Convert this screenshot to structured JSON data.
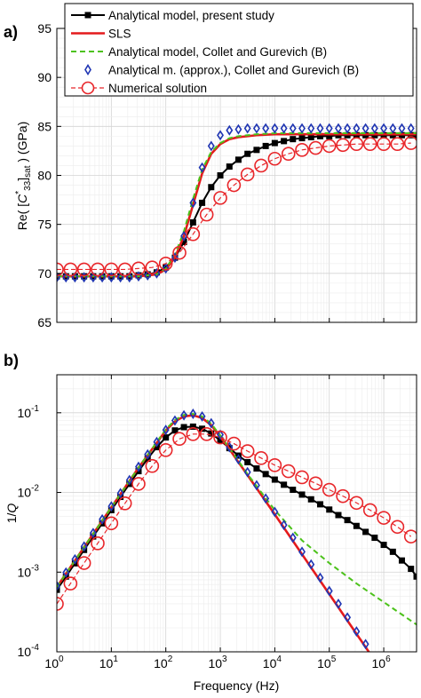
{
  "panels": {
    "a": {
      "label": "a)"
    },
    "b": {
      "label": "b)"
    }
  },
  "colors": {
    "black": "#000000",
    "red": "#e41a1c",
    "green": "#4cc21b",
    "blue": "#1f35b3",
    "red_circle": "#e8262a",
    "grid": "#d9d9d9"
  },
  "chart_data": [
    {
      "panel": "a",
      "type": "line",
      "ylabel": "Re( [C*33]sat ) (GPa)",
      "xscale": "log",
      "xlim": [
        1,
        4000000
      ],
      "ylim": [
        65,
        95
      ],
      "yticks": [
        "65",
        "70",
        "75",
        "80",
        "85",
        "90",
        "95"
      ],
      "grid": true,
      "legend": {
        "placement": "top-left",
        "entries": [
          "Analytical model, present study",
          "SLS",
          "Analytical model, Collet and Gurevich (B)",
          "Analytical m. (approx.), Collet and Gurevich (B)",
          "Numerical solution"
        ]
      },
      "series": [
        {
          "name": "Analytical model, present study",
          "marker": "square",
          "style": "solid",
          "x": [
            1,
            1.47,
            2.15,
            3.16,
            4.64,
            6.81,
            10,
            14.7,
            21.5,
            31.6,
            46.4,
            68.1,
            100,
            147,
            215,
            316,
            464,
            681,
            1000,
            1470,
            2150,
            3160,
            4640,
            6810,
            10000,
            14700,
            21500,
            31600,
            46400,
            68100,
            100000,
            147000,
            215000,
            316000,
            464000,
            681000,
            1000000,
            1470000,
            2150000,
            3160000,
            4000000
          ],
          "y": [
            69.7,
            69.7,
            69.7,
            69.7,
            69.7,
            69.7,
            69.7,
            69.7,
            69.7,
            69.8,
            69.9,
            70.1,
            70.6,
            71.6,
            73.2,
            75.2,
            77.2,
            78.8,
            80.0,
            80.9,
            81.6,
            82.2,
            82.6,
            83.0,
            83.3,
            83.5,
            83.7,
            83.8,
            83.9,
            84.0,
            84.0,
            84.1,
            84.1,
            84.1,
            84.1,
            84.1,
            84.1,
            84.1,
            84.1,
            84.1,
            84.1
          ]
        },
        {
          "name": "SLS",
          "marker": "none",
          "style": "solid",
          "x": [
            1,
            10,
            31.6,
            68.1,
            100,
            147,
            215,
            316,
            464,
            681,
            1000,
            1470,
            2150,
            3160,
            4640,
            10000,
            100000,
            1000000,
            4000000
          ],
          "y": [
            69.7,
            69.7,
            69.7,
            69.9,
            70.4,
            71.6,
            73.8,
            77.0,
            80.2,
            82.2,
            83.2,
            83.7,
            83.9,
            84.0,
            84.1,
            84.2,
            84.2,
            84.2,
            84.2
          ]
        },
        {
          "name": "Analytical model, Collet and Gurevich (B)",
          "marker": "none",
          "style": "dashed",
          "x": [
            1,
            10,
            31.6,
            68.1,
            100,
            147,
            215,
            316,
            464,
            681,
            1000,
            1470,
            2150,
            3160,
            4640,
            10000,
            100000,
            1000000,
            4000000
          ],
          "y": [
            69.7,
            69.7,
            69.7,
            69.9,
            70.5,
            71.9,
            74.3,
            77.6,
            80.6,
            82.4,
            83.3,
            83.8,
            84.0,
            84.1,
            84.2,
            84.3,
            84.3,
            84.3,
            84.3
          ]
        },
        {
          "name": "Analytical m. (approx.), Collet and Gurevich (B)",
          "marker": "diamond",
          "style": "none",
          "x": [
            1,
            1.47,
            2.15,
            3.16,
            4.64,
            6.81,
            10,
            14.7,
            21.5,
            31.6,
            46.4,
            68.1,
            100,
            147,
            215,
            316,
            464,
            681,
            1000,
            1470,
            2150,
            3160,
            4640,
            6810,
            10000,
            14700,
            21500,
            31600,
            46400,
            68100,
            100000,
            147000,
            215000,
            316000,
            464000,
            681000,
            1000000,
            1470000,
            2150000,
            3160000
          ],
          "y": [
            69.6,
            69.6,
            69.6,
            69.6,
            69.6,
            69.6,
            69.6,
            69.6,
            69.6,
            69.7,
            69.8,
            70.0,
            70.5,
            71.6,
            73.8,
            77.2,
            80.8,
            83.0,
            84.1,
            84.6,
            84.7,
            84.8,
            84.8,
            84.8,
            84.8,
            84.8,
            84.8,
            84.8,
            84.8,
            84.8,
            84.8,
            84.8,
            84.8,
            84.8,
            84.8,
            84.8,
            84.8,
            84.8,
            84.8,
            84.8
          ]
        },
        {
          "name": "Numerical solution",
          "marker": "circle",
          "style": "dashed",
          "x": [
            1,
            1.78,
            3.16,
            5.62,
            10,
            17.8,
            31.6,
            56.2,
            100,
            178,
            316,
            562,
            1000,
            1780,
            3160,
            5620,
            10000,
            17800,
            31600,
            56200,
            100000,
            178000,
            316000,
            562000,
            1000000,
            1780000,
            3160000
          ],
          "y": [
            70.4,
            70.4,
            70.4,
            70.4,
            70.4,
            70.4,
            70.5,
            70.6,
            71.0,
            72.1,
            74.0,
            76.0,
            77.7,
            79.0,
            80.1,
            81.0,
            81.7,
            82.2,
            82.6,
            82.8,
            83.0,
            83.1,
            83.2,
            83.2,
            83.2,
            83.2,
            83.3
          ]
        }
      ]
    },
    {
      "panel": "b",
      "type": "line",
      "xlabel": "Frequency (Hz)",
      "ylabel": "1/Q",
      "xscale": "log",
      "yscale": "log",
      "xlim": [
        1,
        4000000
      ],
      "ylim": [
        0.0001,
        0.3
      ],
      "grid": true,
      "series": [
        {
          "name": "Analytical model, present study",
          "marker": "square",
          "style": "solid",
          "x": [
            1,
            1.47,
            2.15,
            3.16,
            4.64,
            6.81,
            10,
            14.7,
            21.5,
            31.6,
            46.4,
            68.1,
            100,
            147,
            215,
            316,
            464,
            681,
            1000,
            1470,
            2150,
            3160,
            4640,
            6810,
            10000,
            14700,
            21500,
            31600,
            46400,
            68100,
            100000,
            147000,
            215000,
            316000,
            464000,
            681000,
            1000000,
            1470000,
            2150000,
            3160000,
            4000000
          ],
          "y": [
            0.0006,
            0.00088,
            0.00129,
            0.0019,
            0.0028,
            0.0041,
            0.006,
            0.0088,
            0.0128,
            0.0185,
            0.0265,
            0.037,
            0.049,
            0.06,
            0.066,
            0.067,
            0.063,
            0.055,
            0.045,
            0.036,
            0.029,
            0.024,
            0.02,
            0.017,
            0.0145,
            0.0125,
            0.0108,
            0.0094,
            0.0082,
            0.0071,
            0.0061,
            0.0052,
            0.0045,
            0.0038,
            0.0032,
            0.0027,
            0.0022,
            0.0018,
            0.0014,
            0.0011,
            0.00088
          ]
        },
        {
          "name": "SLS",
          "marker": "none",
          "style": "solid",
          "x": [
            1,
            10,
            31.6,
            100,
            147,
            215,
            316,
            464,
            681,
            1000,
            1470,
            2150,
            3160,
            10000,
            100000,
            1000000
          ],
          "y": [
            0.00065,
            0.0065,
            0.0205,
            0.06,
            0.078,
            0.09,
            0.093,
            0.086,
            0.07,
            0.05,
            0.035,
            0.024,
            0.0165,
            0.0053,
            0.00053,
            5.32e-05
          ]
        },
        {
          "name": "Analytical model, Collet and Gurevich (B)",
          "marker": "none",
          "style": "dashed",
          "x": [
            1,
            10,
            31.6,
            100,
            147,
            215,
            316,
            464,
            681,
            1000,
            1470,
            2150,
            3160,
            10000,
            31600,
            100000,
            316000,
            1000000,
            4000000
          ],
          "y": [
            0.00065,
            0.0065,
            0.0205,
            0.062,
            0.081,
            0.094,
            0.097,
            0.09,
            0.073,
            0.052,
            0.036,
            0.025,
            0.017,
            0.006,
            0.0025,
            0.0013,
            0.00072,
            0.00042,
            0.00022
          ]
        },
        {
          "name": "Analytical m. (approx.), Collet and Gurevich (B)",
          "marker": "diamond",
          "style": "none",
          "x": [
            1,
            1.47,
            2.15,
            3.16,
            4.64,
            6.81,
            10,
            14.7,
            21.5,
            31.6,
            46.4,
            68.1,
            100,
            147,
            215,
            316,
            464,
            681,
            1000,
            1470,
            2150,
            3160,
            4640,
            6810,
            10000,
            14700,
            21500,
            31600,
            46400,
            68100,
            100000,
            147000,
            215000,
            316000,
            464000,
            681000
          ],
          "y": [
            0.00067,
            0.00099,
            0.00145,
            0.0021,
            0.0031,
            0.0046,
            0.0067,
            0.0098,
            0.0143,
            0.021,
            0.03,
            0.043,
            0.061,
            0.08,
            0.093,
            0.097,
            0.09,
            0.074,
            0.053,
            0.037,
            0.026,
            0.018,
            0.0123,
            0.0084,
            0.0057,
            0.0039,
            0.0027,
            0.0018,
            0.00125,
            0.00085,
            0.00058,
            0.0004,
            0.00027,
            0.00018,
            0.000125,
            8.5e-05
          ]
        },
        {
          "name": "Numerical solution",
          "marker": "circle",
          "style": "dashed",
          "x": [
            1,
            1.78,
            3.16,
            5.62,
            10,
            17.8,
            31.6,
            56.2,
            100,
            178,
            316,
            562,
            1000,
            1780,
            3160,
            5620,
            10000,
            17800,
            31600,
            56200,
            100000,
            178000,
            316000,
            562000,
            1000000,
            1780000,
            3160000
          ],
          "y": [
            0.0004,
            0.00072,
            0.0013,
            0.0023,
            0.0041,
            0.0073,
            0.0128,
            0.0215,
            0.034,
            0.047,
            0.054,
            0.054,
            0.049,
            0.041,
            0.033,
            0.027,
            0.022,
            0.0185,
            0.0155,
            0.013,
            0.0108,
            0.009,
            0.0074,
            0.006,
            0.0048,
            0.0037,
            0.0028
          ]
        }
      ]
    }
  ]
}
